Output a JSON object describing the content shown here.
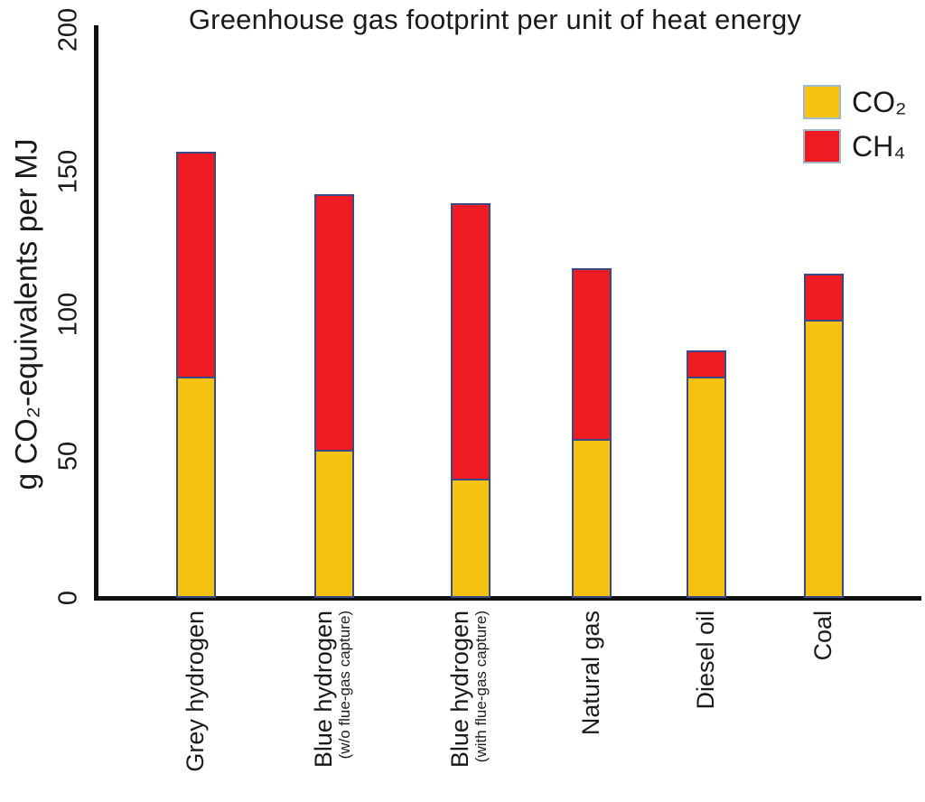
{
  "chart_data": {
    "type": "bar",
    "stacked": true,
    "title": "Greenhouse gas footprint per unit of heat energy",
    "ylabel": "g CO₂-equivalents per MJ",
    "xlabel": "",
    "ylim": [
      0,
      200
    ],
    "yticks": [
      0,
      50,
      100,
      150,
      200
    ],
    "grid": false,
    "legend_position": "top-right",
    "categories": [
      "Grey hydrogen",
      "Blue hydrogen",
      "Blue hydrogen",
      "Natural gas",
      "Diesel oil",
      "Coal"
    ],
    "category_sublabels": [
      "",
      "(w/o flue-gas capture)",
      "(with flue-gas capture)",
      "",
      "",
      ""
    ],
    "series": [
      {
        "name": "CO₂",
        "color": "#F5C211",
        "values": [
          78,
          52,
          42,
          56,
          78,
          98
        ]
      },
      {
        "name": "CH₄",
        "color": "#EE1B23",
        "values": [
          79,
          90,
          97,
          60,
          9,
          16
        ]
      }
    ],
    "totals": [
      157,
      142,
      139,
      116,
      87,
      114
    ]
  },
  "colors": {
    "co2_yellow": "#F5C211",
    "ch4_red": "#EE1B23",
    "bar_outline": "#3A4A84",
    "swatch_outline": "#9FB9CB",
    "axis": "#111111",
    "text": "#1a1a1a",
    "background": "#ffffff"
  }
}
